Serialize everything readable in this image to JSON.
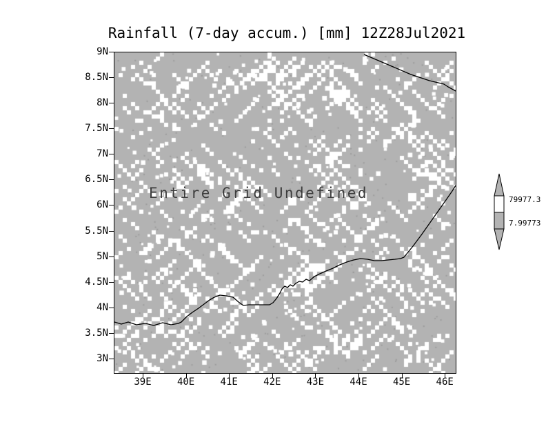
{
  "title": "Rainfall (7-day accum.) [mm] 12Z28Jul2021",
  "plot": {
    "undefined_message": "Entire Grid Undefined",
    "y_ticks": [
      "9N",
      "8.5N",
      "8N",
      "7.5N",
      "7N",
      "6.5N",
      "6N",
      "5.5N",
      "5N",
      "4.5N",
      "4N",
      "3.5N",
      "3N"
    ],
    "x_ticks": [
      "39E",
      "40E",
      "41E",
      "42E",
      "43E",
      "44E",
      "45E",
      "46E"
    ]
  },
  "colorbar": {
    "labels": [
      "79977.3",
      "7.99773"
    ]
  },
  "colors": {
    "grid_fill": "#b3b3b3",
    "speckle": "#ffffff",
    "dark_speck": "#9c9c9c",
    "line": "#000000"
  },
  "chart_data": {
    "type": "heatmap",
    "title": "Rainfall (7-day accum.) [mm] 12Z28Jul2021",
    "xlabel": "",
    "ylabel": "",
    "x_tick_labels": [
      "39E",
      "40E",
      "41E",
      "42E",
      "43E",
      "44E",
      "45E",
      "46E"
    ],
    "y_tick_labels": [
      "9N",
      "8.5N",
      "8N",
      "7.5N",
      "7N",
      "6.5N",
      "6N",
      "5.5N",
      "5N",
      "4.5N",
      "4N",
      "3.5N",
      "3N"
    ],
    "x_range_deg_east": [
      38.4,
      46.3
    ],
    "y_range_deg_north": [
      2.8,
      9.0
    ],
    "values": null,
    "status_annotation": "Entire Grid Undefined",
    "legend_position": "right",
    "grid": false,
    "colorbar": {
      "orientation": "vertical",
      "tick_labels": [
        "79977.3",
        "7.99773"
      ]
    }
  }
}
